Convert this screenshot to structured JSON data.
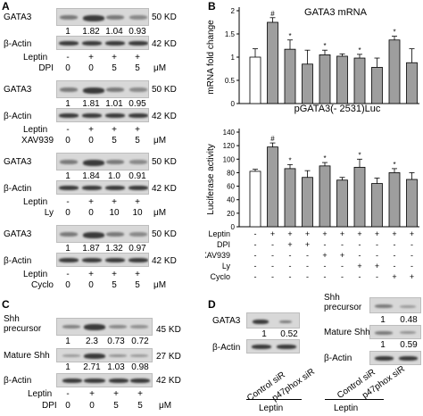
{
  "panel_letters": {
    "a": "A",
    "b": "B",
    "c": "C",
    "d": "D"
  },
  "colors": {
    "bar_grey": "#9e9e9e",
    "bar_white": "#ffffff",
    "band": "#3a3a3a",
    "blot_bg": "#d8d8d8"
  },
  "common": {
    "gata3": "GATA3",
    "bactin": "β-Actin",
    "kd50": "50 KD",
    "kd42": "42 KD",
    "leptin": "Leptin",
    "um": "μM",
    "minus": "-",
    "plus": "+"
  },
  "panelA": [
    {
      "treatment": "DPI",
      "values": [
        "1",
        "1.82",
        "1.04",
        "0.93"
      ],
      "leptin": [
        "-",
        "+",
        "+",
        "+"
      ],
      "doses": [
        "0",
        "0",
        "5",
        "5"
      ]
    },
    {
      "treatment": "XAV939",
      "values": [
        "1",
        "1.81",
        "1.01",
        "0.95"
      ],
      "leptin": [
        "-",
        "+",
        "+",
        "+"
      ],
      "doses": [
        "0",
        "0",
        "5",
        "5"
      ]
    },
    {
      "treatment": "Ly",
      "values": [
        "1",
        "1.84",
        "1.0",
        "0.91"
      ],
      "leptin": [
        "-",
        "+",
        "+",
        "+"
      ],
      "doses": [
        "0",
        "0",
        "10",
        "10"
      ]
    },
    {
      "treatment": "Cyclo",
      "values": [
        "1",
        "1.87",
        "1.32",
        "0.97"
      ],
      "leptin": [
        "-",
        "+",
        "+",
        "+"
      ],
      "doses": [
        "0",
        "0",
        "5",
        "5"
      ]
    }
  ],
  "panelC": {
    "shh_precursor_1": "Shh",
    "shh_precursor_2": "precursor",
    "kd45": "45 KD",
    "mature_shh": "Mature Shh",
    "kd27": "27 KD",
    "precursor_values": [
      "1",
      "2.3",
      "0.73",
      "0.72"
    ],
    "mature_values": [
      "1",
      "2.71",
      "1.03",
      "0.98"
    ],
    "leptin": [
      "-",
      "+",
      "+",
      "+"
    ],
    "dpi_label": "DPI",
    "dpi": [
      "0",
      "0",
      "5",
      "5"
    ]
  },
  "panelD": {
    "gata3_values": [
      "1",
      "0.52"
    ],
    "lanes": [
      "Control siR",
      "p47phox siR"
    ],
    "leptin": "Leptin",
    "shh_precursor_1": "Shh",
    "shh_precursor_2": "precursor",
    "precursor_values": [
      "1",
      "0.48"
    ],
    "mature_shh": "Mature Shh",
    "mature_values": [
      "1",
      "0.59"
    ]
  },
  "chart_data": [
    {
      "type": "bar",
      "title": "GATA3 mRNA",
      "ylabel": "mRNA fold change",
      "ylim": [
        0,
        2
      ],
      "yticks": [
        "0",
        "0.5",
        "1",
        "1.5",
        "2"
      ],
      "values": [
        1.0,
        1.75,
        1.17,
        0.85,
        1.05,
        1.02,
        0.98,
        0.78,
        1.37,
        0.88
      ],
      "errors": [
        0.18,
        0.1,
        0.2,
        0.3,
        0.1,
        0.05,
        0.08,
        0.2,
        0.08,
        0.3
      ],
      "annotations": [
        "",
        "#",
        "*",
        "",
        "*",
        "",
        "*",
        "",
        "*",
        ""
      ]
    },
    {
      "type": "bar",
      "title": "pGATA3(- 2531)Luc",
      "ylabel": "Luciferase activity",
      "ylim": [
        0,
        140
      ],
      "yticks": [
        "0",
        "20",
        "40",
        "60",
        "80",
        "100",
        "120",
        "140"
      ],
      "values": [
        82,
        118,
        86,
        73,
        90,
        69,
        88,
        64,
        80,
        70
      ],
      "errors": [
        3,
        6,
        6,
        10,
        5,
        4,
        12,
        8,
        6,
        10
      ],
      "annotations": [
        "",
        "#",
        "*",
        "",
        "*",
        "",
        "*",
        "",
        "*",
        ""
      ]
    }
  ],
  "panelB_table": [
    {
      "label": "Leptin",
      "signs": [
        "-",
        "+",
        "+",
        "+",
        "+",
        "+",
        "+",
        "+",
        "+",
        "+"
      ]
    },
    {
      "label": "DPI",
      "signs": [
        "-",
        "-",
        "+",
        "+",
        "-",
        "-",
        "-",
        "-",
        "-",
        "-"
      ]
    },
    {
      "label": "XAV939",
      "signs": [
        "-",
        "-",
        "-",
        "-",
        "+",
        "+",
        "-",
        "-",
        "-",
        "-"
      ]
    },
    {
      "label": "Ly",
      "signs": [
        "-",
        "-",
        "-",
        "-",
        "-",
        "-",
        "+",
        "+",
        "-",
        "-"
      ]
    },
    {
      "label": "Cyclo",
      "signs": [
        "-",
        "-",
        "-",
        "-",
        "-",
        "-",
        "-",
        "-",
        "+",
        "+"
      ]
    }
  ]
}
